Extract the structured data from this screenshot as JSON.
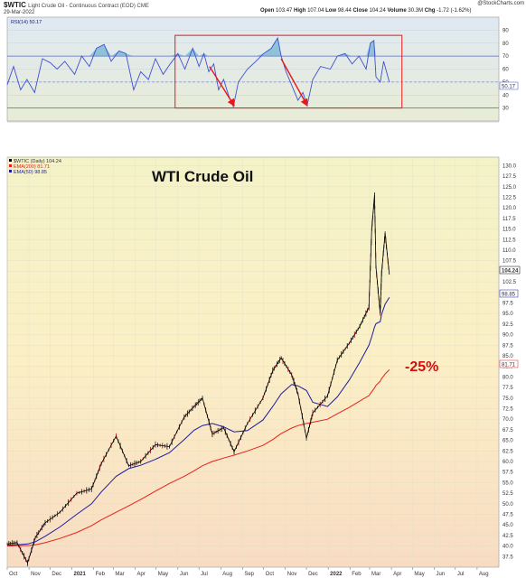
{
  "header": {
    "symbol": "$WTIC",
    "description": "Light Crude Oil - Continuous Contract (EOD) CME",
    "date": "29-Mar-2022",
    "brand": "@StockCharts.com",
    "open_label": "Open",
    "open": "103.47",
    "high_label": "High",
    "high": "107.04",
    "low_label": "Low",
    "low": "98.44",
    "close_label": "Close",
    "close": "104.24",
    "volume_label": "Volume",
    "volume": "30.3M",
    "chg_label": "Chg",
    "chg": "-1.72 (-1.62%)"
  },
  "colors": {
    "price": "#000000",
    "ema200": "#e8201a",
    "ema50": "#1c1ca0",
    "rsi": "#3f4fd4",
    "rsi_fill": "#4aa0c8",
    "box": "#e81818",
    "arrow": "#e81818",
    "annotation": "#d01010"
  },
  "chart_data": [
    {
      "type": "line",
      "title": "",
      "legend": "top-left",
      "legend_entries": [
        "RSI(14) 50.17"
      ],
      "current_label": "50.17",
      "ylim": [
        20,
        100
      ],
      "y_ticks": [
        "90",
        "80",
        "70",
        "60",
        "50",
        "40",
        "30"
      ],
      "reference_lines": [
        70,
        50,
        30
      ],
      "annotations": [
        {
          "kind": "box",
          "x0": "2021-05-28",
          "x1": "2022-04-16",
          "y0": 30,
          "y1": 86
        },
        {
          "kind": "arrow",
          "from": [
            "2021-07-16",
            62
          ],
          "to": [
            "2021-08-20",
            32
          ]
        },
        {
          "kind": "arrow",
          "from": [
            "2021-10-26",
            68
          ],
          "to": [
            "2021-12-02",
            32
          ]
        }
      ],
      "x": [
        "2020-10-01",
        "2020-10-10",
        "2020-10-20",
        "2020-10-29",
        "2020-11-09",
        "2020-11-20",
        "2020-12-01",
        "2020-12-11",
        "2020-12-22",
        "2021-01-05",
        "2021-01-15",
        "2021-01-26",
        "2021-02-05",
        "2021-02-16",
        "2021-02-26",
        "2021-03-09",
        "2021-03-19",
        "2021-03-30",
        "2021-04-09",
        "2021-04-20",
        "2021-04-30",
        "2021-05-11",
        "2021-05-21",
        "2021-06-01",
        "2021-06-11",
        "2021-06-22",
        "2021-07-01",
        "2021-07-08",
        "2021-07-15",
        "2021-07-22",
        "2021-07-29",
        "2021-08-05",
        "2021-08-12",
        "2021-08-19",
        "2021-08-26",
        "2021-09-08",
        "2021-09-20",
        "2021-10-01",
        "2021-10-12",
        "2021-10-21",
        "2021-10-26",
        "2021-11-02",
        "2021-11-12",
        "2021-11-19",
        "2021-11-26",
        "2021-12-02",
        "2021-12-10",
        "2021-12-21",
        "2022-01-04",
        "2022-01-14",
        "2022-01-25",
        "2022-02-04",
        "2022-02-14",
        "2022-02-24",
        "2022-03-02",
        "2022-03-07",
        "2022-03-10",
        "2022-03-16",
        "2022-03-21",
        "2022-03-29"
      ],
      "series": [
        {
          "name": "RSI(14)",
          "values": [
            48,
            62,
            44,
            52,
            42,
            68,
            65,
            60,
            66,
            56,
            70,
            62,
            76,
            79,
            66,
            74,
            72,
            44,
            58,
            52,
            68,
            56,
            64,
            72,
            60,
            76,
            62,
            72,
            58,
            64,
            44,
            52,
            40,
            31,
            50,
            60,
            66,
            72,
            76,
            84,
            70,
            58,
            45,
            36,
            42,
            32,
            52,
            62,
            60,
            70,
            72,
            64,
            70,
            60,
            80,
            82,
            54,
            50,
            66,
            50
          ]
        }
      ]
    },
    {
      "type": "line",
      "title": "WTI Crude Oil",
      "legend": "top-left",
      "legend_entries": [
        "$WTIC (Daily) 104.24",
        "EMA(200) 81.71",
        "EMA(50) 98.85"
      ],
      "ylim": [
        35,
        132
      ],
      "y_ticks": [
        "130.0",
        "127.5",
        "125.0",
        "122.5",
        "120.0",
        "117.5",
        "115.0",
        "112.5",
        "110.0",
        "107.5",
        "105.0",
        "102.5",
        "100.0",
        "97.5",
        "95.0",
        "92.5",
        "90.0",
        "87.5",
        "85.0",
        "82.5",
        "80.0",
        "77.5",
        "75.0",
        "72.5",
        "70.0",
        "67.5",
        "65.0",
        "62.5",
        "60.0",
        "57.5",
        "55.0",
        "52.5",
        "50.0",
        "47.5",
        "45.0",
        "42.5",
        "40.0",
        "37.5"
      ],
      "x_ticks": [
        "Oct",
        "Nov",
        "Dec",
        "2021",
        "Feb",
        "Mar",
        "Apr",
        "May",
        "Jun",
        "Jul",
        "Aug",
        "Sep",
        "Oct",
        "Nov",
        "Dec",
        "2022",
        "Feb",
        "Mar",
        "Apr",
        "May",
        "Jun",
        "Jul",
        "Aug"
      ],
      "price_labels": {
        "close": "104.24",
        "ema50": "98.85",
        "ema200": "81.71"
      },
      "annotations": [
        {
          "text": "WTI Crude Oil"
        },
        {
          "text": "-25%"
        }
      ],
      "x": [
        "2020-10-01",
        "2020-10-15",
        "2020-10-30",
        "2020-11-10",
        "2020-11-24",
        "2020-12-15",
        "2021-01-08",
        "2021-01-29",
        "2021-02-12",
        "2021-03-05",
        "2021-03-23",
        "2021-04-09",
        "2021-04-30",
        "2021-05-20",
        "2021-06-10",
        "2021-06-24",
        "2021-07-06",
        "2021-07-20",
        "2021-08-05",
        "2021-08-20",
        "2021-09-08",
        "2021-09-30",
        "2021-10-14",
        "2021-10-26",
        "2021-11-10",
        "2021-11-19",
        "2021-12-01",
        "2021-12-10",
        "2021-12-31",
        "2022-01-14",
        "2022-01-31",
        "2022-02-15",
        "2022-02-28",
        "2022-03-04",
        "2022-03-08",
        "2022-03-10",
        "2022-03-16",
        "2022-03-18",
        "2022-03-23",
        "2022-03-29"
      ],
      "series": [
        {
          "name": "$WTIC",
          "values": [
            40.5,
            40.8,
            36.0,
            42.0,
            45.5,
            48.0,
            52.5,
            53.5,
            59.5,
            66.0,
            59.0,
            60.0,
            64.0,
            63.5,
            70.5,
            73.0,
            75.0,
            66.5,
            68.0,
            62.3,
            69.0,
            75.0,
            81.5,
            84.5,
            80.5,
            76.0,
            65.5,
            71.5,
            75.5,
            84.0,
            88.0,
            92.0,
            96.5,
            115.0,
            123.0,
            106.0,
            95.0,
            104.5,
            114.0,
            104.2
          ]
        },
        {
          "name": "EMA(200)",
          "values": [
            40.0,
            40.1,
            40.1,
            40.3,
            40.8,
            41.8,
            43.2,
            44.8,
            46.2,
            48.0,
            49.5,
            51.0,
            53.0,
            54.8,
            56.5,
            57.8,
            59.0,
            60.0,
            60.8,
            61.5,
            62.5,
            63.8,
            65.2,
            66.6,
            67.9,
            68.5,
            69.0,
            69.3,
            70.0,
            71.3,
            72.8,
            74.3,
            75.6,
            76.5,
            77.4,
            78.0,
            79.0,
            79.6,
            80.7,
            81.7
          ]
        },
        {
          "name": "EMA(50)",
          "values": [
            40.2,
            40.3,
            40.5,
            41.0,
            42.3,
            44.5,
            47.5,
            50.0,
            52.8,
            56.5,
            58.3,
            59.1,
            60.5,
            62.1,
            65.2,
            67.4,
            68.5,
            69.0,
            68.2,
            67.0,
            67.3,
            69.8,
            73.0,
            76.0,
            78.2,
            77.9,
            76.8,
            74.0,
            73.0,
            75.3,
            79.3,
            83.5,
            87.5,
            89.5,
            91.8,
            92.6,
            93.1,
            94.8,
            97.2,
            98.85
          ]
        }
      ]
    }
  ]
}
